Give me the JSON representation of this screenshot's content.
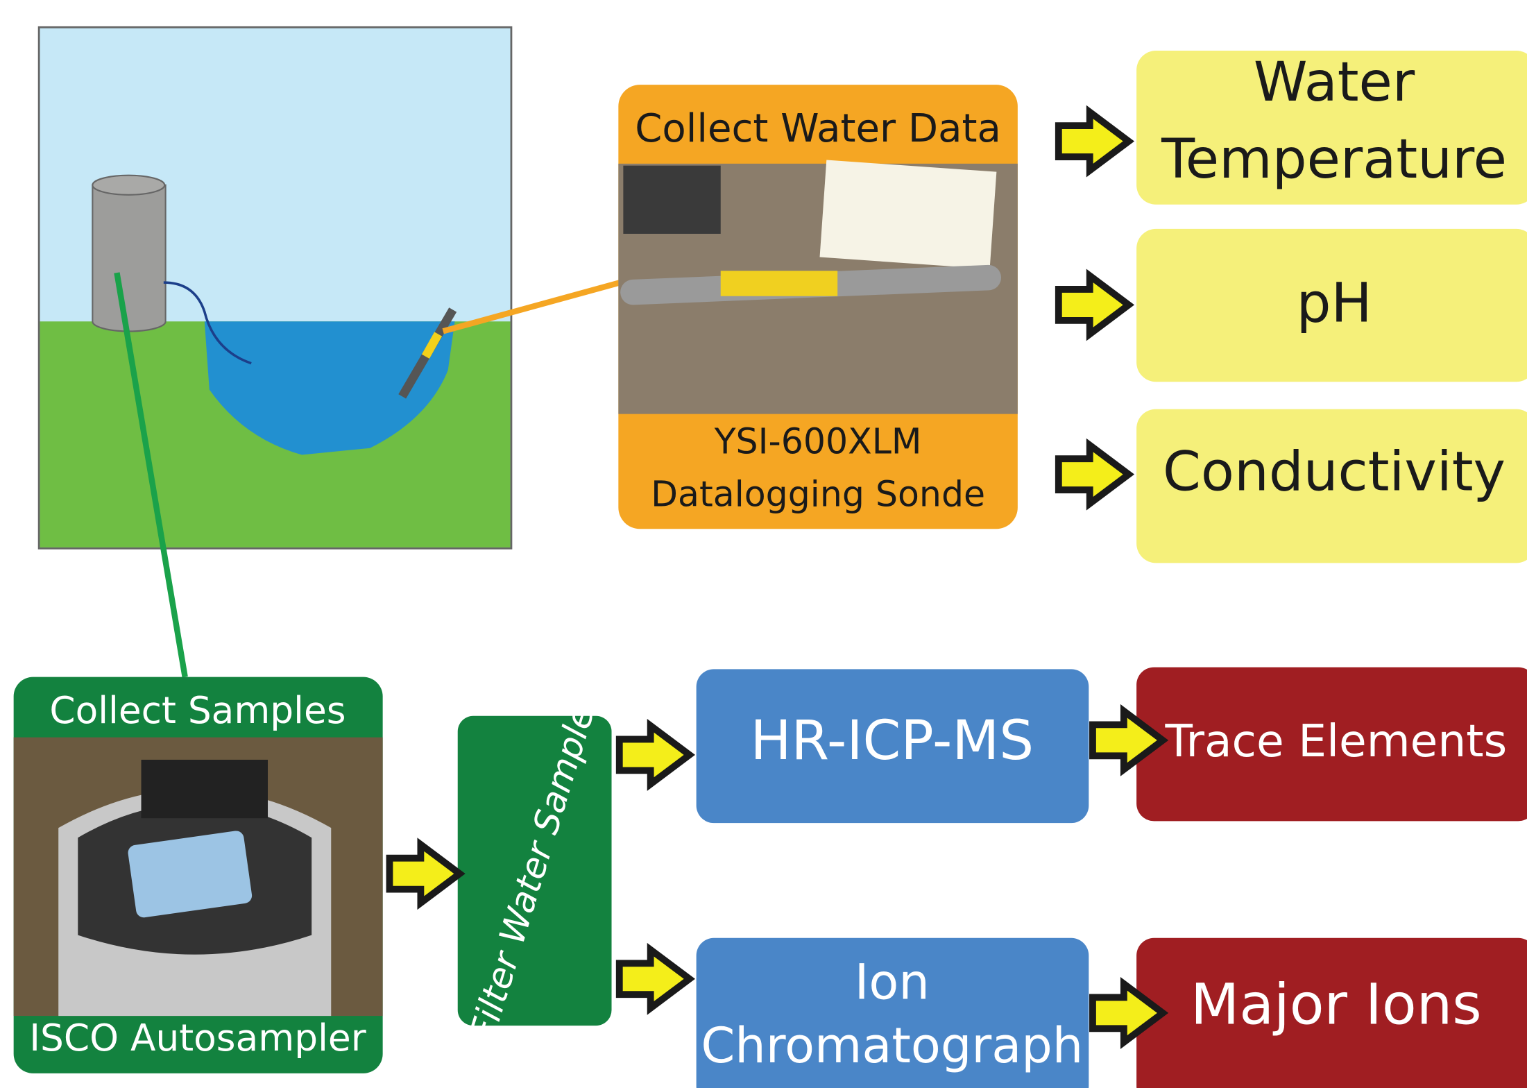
{
  "sonde": {
    "header": "Collect Water Data",
    "footer": [
      "YSI-600XLM",
      "Datalogging Sonde"
    ]
  },
  "measurements": [
    [
      "Water",
      "Temperature"
    ],
    [
      "pH"
    ],
    [
      "Conductivity"
    ]
  ],
  "sampler": {
    "header": "Collect Samples",
    "footer": "ISCO Autosampler"
  },
  "filter": "Filter Water Sample",
  "instruments": [
    [
      "HR-ICP-MS"
    ],
    [
      "Ion",
      "Chromatograph"
    ]
  ],
  "results": [
    "Trace Elements",
    "Major Ions"
  ]
}
